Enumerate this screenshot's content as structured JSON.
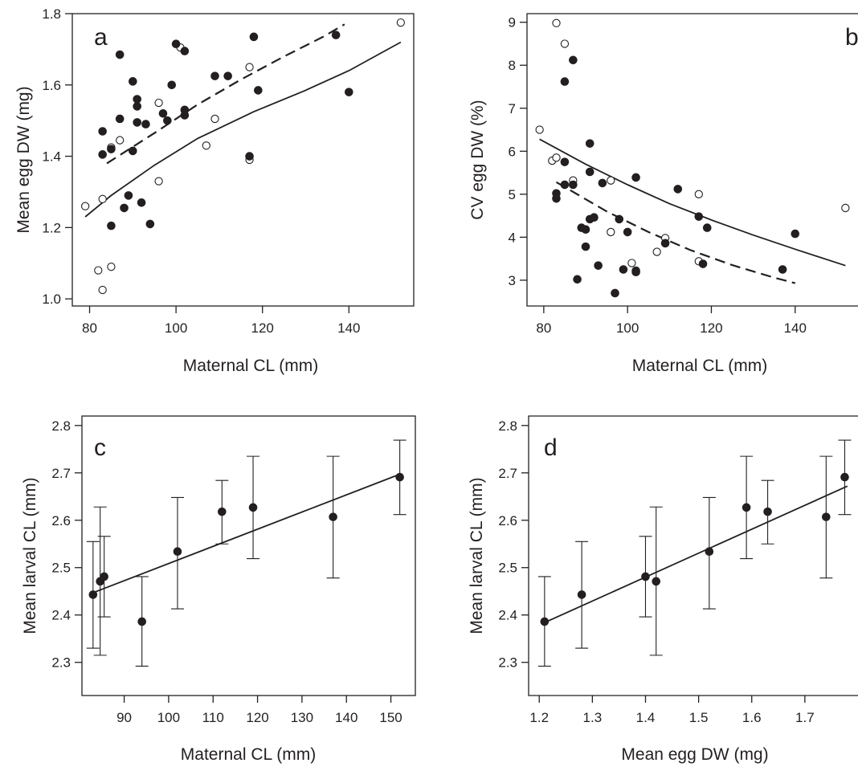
{
  "colors": {
    "ink": "#231f20",
    "open_fill": "#ffffff",
    "filled_fill": "#231f20"
  },
  "chart_data": [
    {
      "panel": "a",
      "type": "scatter",
      "xlabel": "Maternal CL (mm)",
      "ylabel": "Mean egg DW (mg)",
      "xlim": [
        76,
        155
      ],
      "ylim": [
        0.98,
        1.8
      ],
      "xticks": [
        80,
        100,
        120,
        140
      ],
      "yticks": [
        1.0,
        1.2,
        1.4,
        1.6,
        1.8
      ],
      "yticks_decimals": 1,
      "series": [
        {
          "marker": "open",
          "points": [
            [
              79,
              1.26
            ],
            [
              82,
              1.08
            ],
            [
              83,
              1.025
            ],
            [
              83,
              1.28
            ],
            [
              85,
              1.09
            ],
            [
              85,
              1.425
            ],
            [
              87,
              1.445
            ],
            [
              96,
              1.33
            ],
            [
              96,
              1.55
            ],
            [
              101,
              1.705
            ],
            [
              107,
              1.43
            ],
            [
              109,
              1.505
            ],
            [
              117,
              1.39
            ],
            [
              117,
              1.65
            ],
            [
              152,
              1.775
            ]
          ]
        },
        {
          "marker": "filled",
          "points": [
            [
              83,
              1.47
            ],
            [
              83,
              1.405
            ],
            [
              85,
              1.205
            ],
            [
              85,
              1.42
            ],
            [
              87,
              1.685
            ],
            [
              87,
              1.505
            ],
            [
              88,
              1.255
            ],
            [
              89,
              1.29
            ],
            [
              90,
              1.61
            ],
            [
              90,
              1.415
            ],
            [
              91,
              1.56
            ],
            [
              91,
              1.54
            ],
            [
              91,
              1.495
            ],
            [
              92,
              1.27
            ],
            [
              93,
              1.49
            ],
            [
              94,
              1.21
            ],
            [
              97,
              1.52
            ],
            [
              98,
              1.5
            ],
            [
              99,
              1.6
            ],
            [
              100,
              1.715
            ],
            [
              102,
              1.695
            ],
            [
              102,
              1.53
            ],
            [
              102,
              1.515
            ],
            [
              109,
              1.625
            ],
            [
              112,
              1.625
            ],
            [
              117,
              1.4
            ],
            [
              118,
              1.735
            ],
            [
              119,
              1.585
            ],
            [
              137,
              1.74
            ],
            [
              140,
              1.58
            ]
          ]
        }
      ],
      "fits": [
        {
          "style": "solid",
          "x": [
            79,
            85,
            95,
            105,
            118,
            130,
            140,
            152
          ],
          "y": [
            1.23,
            1.29,
            1.375,
            1.45,
            1.525,
            1.585,
            1.64,
            1.72
          ]
        },
        {
          "style": "dashed",
          "x": [
            84,
            95,
            105,
            115,
            125,
            134,
            139
          ],
          "y": [
            1.38,
            1.465,
            1.545,
            1.615,
            1.68,
            1.735,
            1.77
          ]
        }
      ]
    },
    {
      "panel": "b",
      "type": "scatter",
      "xlabel": "Maternal CL (mm)",
      "ylabel": "CV egg DW (%)",
      "xlim": [
        76,
        155
      ],
      "ylim": [
        2.4,
        9.2
      ],
      "xticks": [
        80,
        100,
        120,
        140
      ],
      "yticks": [
        3,
        4,
        5,
        6,
        7,
        8,
        9
      ],
      "yticks_decimals": 0,
      "series": [
        {
          "marker": "open",
          "points": [
            [
              79,
              6.5
            ],
            [
              82,
              5.78
            ],
            [
              83,
              5.85
            ],
            [
              83,
              8.98
            ],
            [
              85,
              8.5
            ],
            [
              87,
              5.32
            ],
            [
              96,
              4.12
            ],
            [
              96,
              5.32
            ],
            [
              101,
              3.4
            ],
            [
              107,
              3.66
            ],
            [
              109,
              3.98
            ],
            [
              117,
              3.44
            ],
            [
              117,
              5.0
            ],
            [
              152,
              4.68
            ]
          ]
        },
        {
          "marker": "filled",
          "points": [
            [
              83,
              5.02
            ],
            [
              83,
              4.9
            ],
            [
              85,
              7.62
            ],
            [
              85,
              5.75
            ],
            [
              85,
              5.22
            ],
            [
              87,
              8.12
            ],
            [
              87,
              5.22
            ],
            [
              88,
              3.02
            ],
            [
              89,
              4.22
            ],
            [
              90,
              3.78
            ],
            [
              90,
              4.18
            ],
            [
              91,
              6.18
            ],
            [
              91,
              5.52
            ],
            [
              91,
              4.42
            ],
            [
              92,
              4.46
            ],
            [
              93,
              3.34
            ],
            [
              94,
              5.26
            ],
            [
              97,
              2.7
            ],
            [
              98,
              4.42
            ],
            [
              99,
              3.25
            ],
            [
              100,
              4.12
            ],
            [
              102,
              5.39
            ],
            [
              102,
              3.22
            ],
            [
              102,
              3.19
            ],
            [
              109,
              3.86
            ],
            [
              112,
              5.12
            ],
            [
              117,
              4.48
            ],
            [
              118,
              3.38
            ],
            [
              119,
              4.22
            ],
            [
              137,
              3.25
            ],
            [
              140,
              4.08
            ]
          ]
        }
      ],
      "fits": [
        {
          "style": "solid",
          "x": [
            79,
            90,
            100,
            110,
            120,
            130,
            140,
            152
          ],
          "y": [
            6.28,
            5.7,
            5.22,
            4.78,
            4.4,
            4.05,
            3.72,
            3.34
          ]
        },
        {
          "style": "dashed",
          "x": [
            83,
            95,
            105,
            115,
            125,
            135,
            140
          ],
          "y": [
            5.28,
            4.6,
            4.12,
            3.7,
            3.35,
            3.06,
            2.93
          ]
        }
      ]
    },
    {
      "panel": "c",
      "type": "scatter",
      "xlabel": "Maternal CL (mm)",
      "ylabel": "Mean larval CL (mm)",
      "xlim": [
        80.5,
        155.5
      ],
      "ylim": [
        2.23,
        2.82
      ],
      "xticks": [
        90,
        100,
        110,
        120,
        130,
        140,
        150
      ],
      "yticks": [
        2.3,
        2.4,
        2.5,
        2.6,
        2.7,
        2.8
      ],
      "yticks_decimals": 1,
      "series": [
        {
          "marker": "filled",
          "points": [
            [
              83,
              2.443,
              2.33,
              2.555
            ],
            [
              84.6,
              2.471,
              2.315,
              2.628
            ],
            [
              85.5,
              2.481,
              2.396,
              2.566
            ],
            [
              94,
              2.386,
              2.292,
              2.481
            ],
            [
              102,
              2.534,
              2.413,
              2.648
            ],
            [
              112,
              2.618,
              2.55,
              2.684
            ],
            [
              119,
              2.627,
              2.519,
              2.735
            ],
            [
              137,
              2.607,
              2.478,
              2.735
            ],
            [
              152,
              2.691,
              2.612,
              2.769
            ]
          ]
        }
      ],
      "fits": [
        {
          "style": "solid",
          "x": [
            83,
            152
          ],
          "y": [
            2.447,
            2.697
          ]
        }
      ]
    },
    {
      "panel": "d",
      "type": "scatter",
      "xlabel": "Mean egg DW (mg)",
      "ylabel": "Mean larval CL (mm)",
      "xlim": [
        1.18,
        1.8
      ],
      "ylim": [
        2.23,
        2.82
      ],
      "xticks": [
        1.2,
        1.3,
        1.4,
        1.5,
        1.6,
        1.7
      ],
      "yticks": [
        2.3,
        2.4,
        2.5,
        2.6,
        2.7,
        2.8
      ],
      "yticks_decimals": 1,
      "series": [
        {
          "marker": "filled",
          "points": [
            [
              1.21,
              2.386,
              2.292,
              2.481
            ],
            [
              1.28,
              2.443,
              2.33,
              2.555
            ],
            [
              1.4,
              2.481,
              2.396,
              2.566
            ],
            [
              1.42,
              2.471,
              2.315,
              2.628
            ],
            [
              1.52,
              2.534,
              2.413,
              2.648
            ],
            [
              1.59,
              2.627,
              2.519,
              2.735
            ],
            [
              1.63,
              2.618,
              2.55,
              2.684
            ],
            [
              1.74,
              2.607,
              2.478,
              2.735
            ],
            [
              1.775,
              2.691,
              2.612,
              2.769
            ]
          ]
        }
      ],
      "fits": [
        {
          "style": "solid",
          "x": [
            1.21,
            1.78
          ],
          "y": [
            2.384,
            2.672
          ]
        }
      ]
    }
  ]
}
